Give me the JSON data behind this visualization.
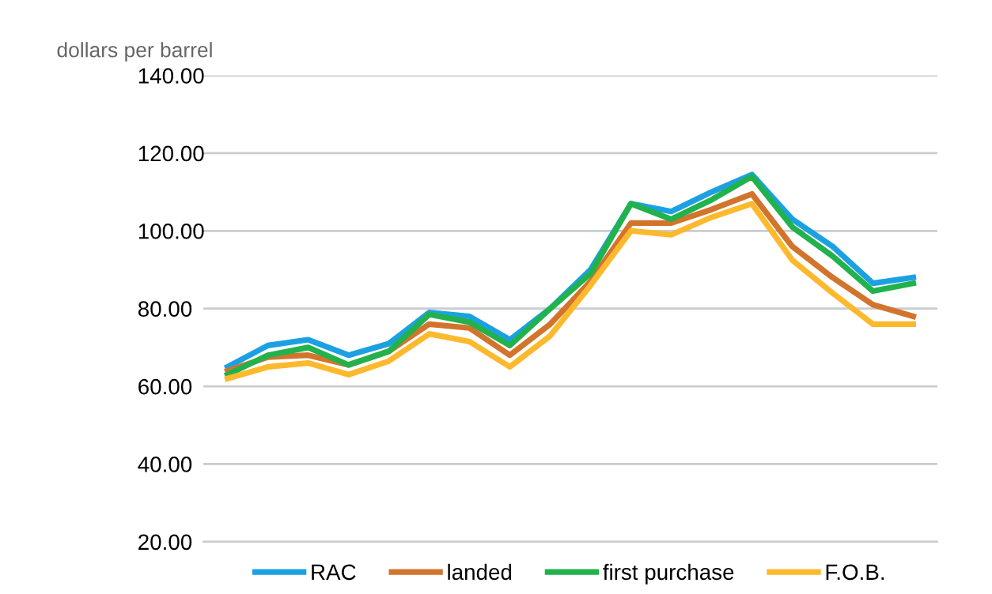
{
  "chart_data": {
    "type": "line",
    "ylabel": "dollars per barrel",
    "categories": [
      null,
      null,
      null,
      null,
      null,
      null,
      null,
      null,
      null,
      null,
      null,
      null,
      null,
      null,
      null,
      null,
      null,
      null
    ],
    "series": [
      {
        "name": "RAC",
        "color": "#1ba1e2",
        "values": [
          65,
          70.5,
          72,
          68,
          71,
          79,
          78,
          72,
          80,
          90,
          107,
          105,
          110,
          114.5,
          103,
          96,
          86.5,
          88
        ]
      },
      {
        "name": "landed",
        "color": "#d2742c",
        "values": [
          64,
          67.5,
          68,
          65.5,
          69,
          76,
          75,
          68,
          76,
          87,
          102,
          102,
          105.5,
          109.5,
          96,
          88,
          81,
          78
        ]
      },
      {
        "name": "first purchase",
        "color": "#22b24c",
        "values": [
          63,
          68,
          70,
          65.5,
          69,
          78.5,
          76.5,
          70.5,
          80,
          89,
          107,
          103,
          108,
          114,
          101,
          93.5,
          84.5,
          86.5
        ]
      },
      {
        "name": "F.O.B.",
        "color": "#fdb92e",
        "values": [
          62,
          65,
          66,
          63,
          66.5,
          73.5,
          71.5,
          65,
          73,
          86,
          100,
          99,
          103.5,
          107,
          92.5,
          84,
          76,
          76
        ]
      }
    ],
    "ylim": [
      20,
      140
    ],
    "yticks": [
      {
        "value": 20,
        "label": "20.00"
      },
      {
        "value": 40,
        "label": "40.00"
      },
      {
        "value": 60,
        "label": "60.00"
      },
      {
        "value": 80,
        "label": "80.00"
      },
      {
        "value": 100,
        "label": "100.00"
      },
      {
        "value": 120,
        "label": "120.00"
      },
      {
        "value": 140,
        "label": "140.00"
      }
    ],
    "grid": "y",
    "legend": "bottom",
    "tick_labels": "y",
    "marker": "none",
    "line_style": "solid"
  }
}
